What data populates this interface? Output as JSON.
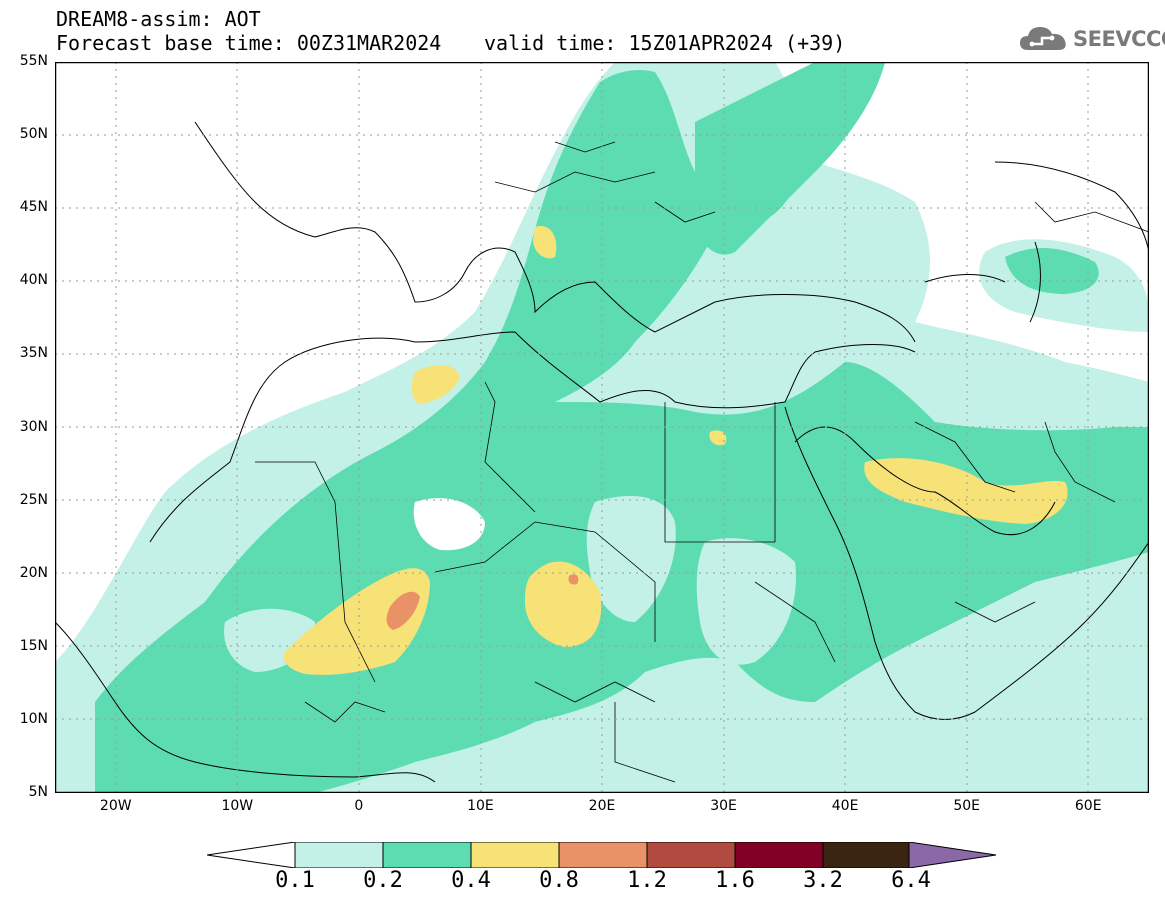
{
  "header": {
    "line1": "DREAM8-assim: AOT",
    "line2": "Forecast base time: 00Z31MAR2024",
    "line3": "valid time: 15Z01APR2024 (+39)"
  },
  "logo": {
    "text": "SEEVCCC",
    "icon": "cloud-logo-icon"
  },
  "map": {
    "lat_labels": [
      "55N",
      "50N",
      "45N",
      "40N",
      "35N",
      "30N",
      "25N",
      "20N",
      "15N",
      "10N",
      "5N"
    ],
    "lon_labels": [
      "20W",
      "10W",
      "0",
      "10E",
      "20E",
      "30E",
      "40E",
      "50E",
      "60E"
    ],
    "lon_range": [
      -25,
      65
    ],
    "lat_range": [
      5,
      55
    ],
    "grid": "dotted"
  },
  "colorbar": {
    "labels": [
      "0.1",
      "0.2",
      "0.4",
      "0.8",
      "1.2",
      "1.6",
      "3.2",
      "6.4"
    ],
    "colors": [
      "#ffffff",
      "#c3f1e8",
      "#5ddcb2",
      "#f6e277",
      "#e99167",
      "#b24b3f",
      "#820026",
      "#3a2512",
      "#8b68a8"
    ]
  }
}
